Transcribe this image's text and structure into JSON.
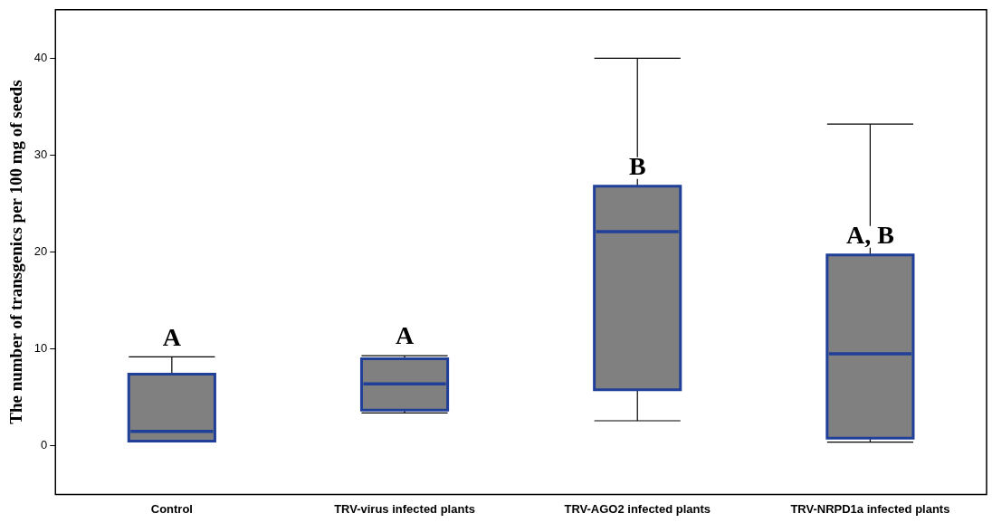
{
  "chart_data": {
    "type": "box",
    "ylabel": "The number of transgenics per 100 mg of seeds",
    "categories": [
      "Control",
      "TRV-virus infected plants",
      "TRV-AGO2 infected plants",
      "TRV-NRPD1a infected plants"
    ],
    "color": "#808080",
    "boxes": [
      {
        "low": 0.5,
        "q1": 0.5,
        "median": 1.5,
        "q3": 7.4,
        "high": 9.2
      },
      {
        "low": 3.4,
        "q1": 3.7,
        "median": 6.4,
        "q3": 9.0,
        "high": 9.3
      },
      {
        "low": 2.6,
        "q1": 5.8,
        "median": 22.1,
        "q3": 26.8,
        "high": 40
      },
      {
        "low": 0.4,
        "q1": 0.8,
        "median": 9.5,
        "q3": 19.7,
        "high": 33.2
      }
    ],
    "ylim": [
      -5,
      45
    ],
    "yticks": [
      0,
      10,
      20,
      30,
      40
    ],
    "annotations": [
      {
        "text": "A",
        "x": "Control",
        "y": 9.2
      },
      {
        "text": "A",
        "x": "TRV-virus infected plants",
        "y": 9.3
      },
      {
        "text": "B",
        "x": "TRV-AGO2 infected plants",
        "y": 26.8
      },
      {
        "text": "A, B",
        "x": "TRV-NRPD1a infected plants",
        "y": 19.7
      }
    ]
  }
}
